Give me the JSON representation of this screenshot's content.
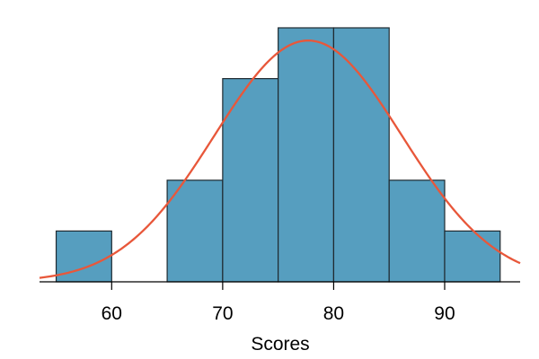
{
  "chart_data": {
    "type": "bar",
    "subtype": "histogram",
    "xlabel": "Scores",
    "xlim": [
      53.5,
      96.8
    ],
    "ylim": [
      0,
      5
    ],
    "xticks": [
      60,
      70,
      80,
      90
    ],
    "tick_labels": [
      "60",
      "70",
      "80",
      "90"
    ],
    "bins": [
      {
        "start": 55,
        "end": 60,
        "count": 1
      },
      {
        "start": 60,
        "end": 65,
        "count": 0
      },
      {
        "start": 65,
        "end": 70,
        "count": 2
      },
      {
        "start": 70,
        "end": 75,
        "count": 4
      },
      {
        "start": 75,
        "end": 80,
        "count": 5
      },
      {
        "start": 80,
        "end": 85,
        "count": 5
      },
      {
        "start": 85,
        "end": 90,
        "count": 2
      },
      {
        "start": 90,
        "end": 95,
        "count": 1
      }
    ],
    "normal_curve": {
      "mean": 77.7,
      "sd": 8.44,
      "peak": 4.75
    },
    "colors": {
      "bar_fill": "#569ebf",
      "bar_stroke": "#1f2a30",
      "curve": "#e8573a",
      "axis": "#000000"
    },
    "grid": false,
    "legend": "none"
  }
}
